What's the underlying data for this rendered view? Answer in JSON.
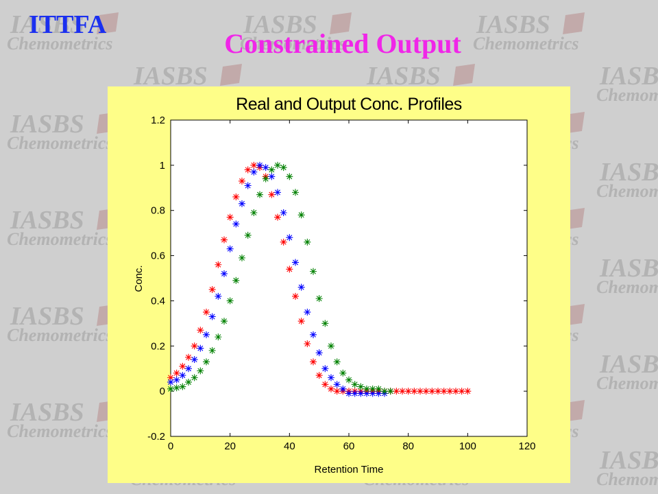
{
  "header": {
    "app_tag": "ITTFA",
    "slide_title": "Constrained Output"
  },
  "watermark": {
    "line1": "IASBS",
    "line2": "Chemometrics"
  },
  "colors": {
    "background": "#cfcfcf",
    "panel": "#fefe88",
    "app_tag": "#1a2ff0",
    "slide_title": "#f026e8"
  },
  "chart_data": {
    "type": "scatter",
    "title": "Real and Output Conc. Profiles",
    "xlabel": "Retention Time",
    "ylabel": "Conc.",
    "xlim": [
      0,
      120
    ],
    "ylim": [
      -0.2,
      1.2
    ],
    "xticks": [
      0,
      20,
      40,
      60,
      80,
      100,
      120
    ],
    "yticks": [
      -0.2,
      0,
      0.2,
      0.4,
      0.6,
      0.8,
      1,
      1.2
    ],
    "grid": false,
    "marker": "*",
    "series": [
      {
        "color": "#ff0000",
        "x": [
          0,
          2,
          4,
          6,
          8,
          10,
          12,
          14,
          16,
          18,
          20,
          22,
          24,
          26,
          28,
          30,
          32,
          34,
          36,
          38,
          40,
          42,
          44,
          46,
          48,
          50,
          52,
          54,
          56,
          58,
          60,
          62,
          64,
          66,
          68,
          70,
          72,
          74,
          76,
          78,
          80,
          82,
          84,
          86,
          88,
          90,
          92,
          94,
          96,
          98,
          100
        ],
        "y": [
          0.06,
          0.08,
          0.11,
          0.15,
          0.2,
          0.27,
          0.35,
          0.45,
          0.56,
          0.67,
          0.77,
          0.86,
          0.93,
          0.98,
          1.0,
          0.99,
          0.95,
          0.87,
          0.77,
          0.66,
          0.54,
          0.42,
          0.31,
          0.21,
          0.13,
          0.07,
          0.03,
          0.01,
          0.0,
          0.0,
          0.0,
          0.0,
          0.0,
          0.0,
          0.0,
          0.0,
          0.0,
          0.0,
          0.0,
          0.0,
          0.0,
          0.0,
          0.0,
          0.0,
          0.0,
          0.0,
          0.0,
          0.0,
          0.0,
          0.0,
          0.0
        ]
      },
      {
        "color": "#0000ff",
        "x": [
          0,
          2,
          4,
          6,
          8,
          10,
          12,
          14,
          16,
          18,
          20,
          22,
          24,
          26,
          28,
          30,
          32,
          34,
          36,
          38,
          40,
          42,
          44,
          46,
          48,
          50,
          52,
          54,
          56,
          58,
          60,
          62,
          64,
          66,
          68,
          70,
          72
        ],
        "y": [
          0.04,
          0.05,
          0.07,
          0.1,
          0.14,
          0.19,
          0.25,
          0.33,
          0.42,
          0.52,
          0.63,
          0.74,
          0.83,
          0.91,
          0.97,
          1.0,
          0.99,
          0.95,
          0.88,
          0.79,
          0.68,
          0.57,
          0.46,
          0.35,
          0.25,
          0.17,
          0.1,
          0.06,
          0.03,
          0.01,
          -0.01,
          -0.01,
          -0.01,
          -0.01,
          -0.01,
          -0.01,
          -0.01
        ]
      },
      {
        "color": "#008000",
        "x": [
          0,
          2,
          4,
          6,
          8,
          10,
          12,
          14,
          16,
          18,
          20,
          22,
          24,
          26,
          28,
          30,
          32,
          34,
          36,
          38,
          40,
          42,
          44,
          46,
          48,
          50,
          52,
          54,
          56,
          58,
          60,
          62,
          64,
          66,
          68,
          70,
          72,
          74
        ],
        "y": [
          0.01,
          0.015,
          0.02,
          0.04,
          0.06,
          0.09,
          0.13,
          0.18,
          0.24,
          0.31,
          0.4,
          0.49,
          0.59,
          0.69,
          0.79,
          0.87,
          0.94,
          0.98,
          1.0,
          0.99,
          0.95,
          0.88,
          0.78,
          0.66,
          0.53,
          0.41,
          0.3,
          0.2,
          0.13,
          0.08,
          0.05,
          0.03,
          0.02,
          0.01,
          0.01,
          0.01,
          0.0,
          0.0
        ]
      }
    ]
  }
}
